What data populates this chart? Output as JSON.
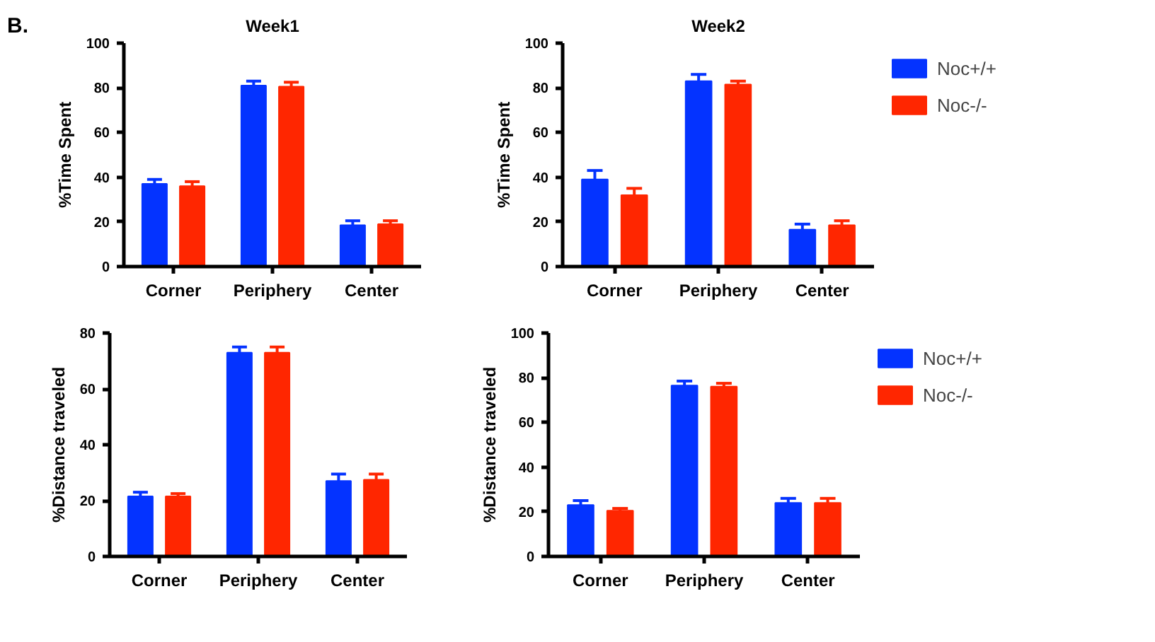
{
  "chart_data": [
    {
      "type": "bar",
      "title": "Week1",
      "ylabel": "%Time Spent",
      "annotations": [
        "B."
      ],
      "categories": [
        "Corner",
        "Periphery",
        "Center"
      ],
      "ylim": [
        0,
        100
      ],
      "yticks": [
        0,
        20,
        40,
        60,
        80,
        100
      ],
      "grid": false,
      "legend": false,
      "series": [
        {
          "color": "#0433ff",
          "values": [
            37,
            81,
            18.5
          ],
          "errors": [
            [
              37,
              39
            ],
            [
              81,
              83
            ],
            [
              18.5,
              20.5
            ]
          ]
        },
        {
          "color": "#ff2600",
          "values": [
            36,
            80.5,
            19
          ],
          "errors": [
            [
              36,
              38
            ],
            [
              80.5,
              82.5
            ],
            [
              19,
              20.5
            ]
          ]
        }
      ]
    },
    {
      "type": "bar",
      "title": "Week2",
      "ylabel": "%Time Spent",
      "categories": [
        "Corner",
        "Periphery",
        "Center"
      ],
      "ylim": [
        0,
        100
      ],
      "yticks": [
        0,
        20,
        40,
        60,
        80,
        100
      ],
      "grid": false,
      "legend": "top right",
      "series": [
        {
          "name": "Noc+/+",
          "color": "#0433ff",
          "values": [
            39,
            83,
            16.5
          ],
          "errors": [
            [
              39,
              43
            ],
            [
              83,
              86
            ],
            [
              16.5,
              19
            ]
          ]
        },
        {
          "name": "Noc-/-",
          "color": "#ff2600",
          "values": [
            32,
            81.5,
            18.5
          ],
          "errors": [
            [
              32,
              35
            ],
            [
              81.5,
              83
            ],
            [
              18.5,
              20.5
            ]
          ]
        }
      ]
    },
    {
      "type": "bar",
      "ylabel": "%Distance traveled",
      "categories": [
        "Corner",
        "Periphery",
        "Center"
      ],
      "ylim": [
        0,
        80
      ],
      "yticks": [
        0,
        20,
        40,
        60,
        80
      ],
      "grid": false,
      "legend": false,
      "series": [
        {
          "color": "#0433ff",
          "values": [
            21.5,
            73,
            27
          ],
          "errors": [
            [
              21.5,
              23
            ],
            [
              73,
              75
            ],
            [
              27,
              29.5
            ]
          ]
        },
        {
          "color": "#ff2600",
          "values": [
            21.5,
            73,
            27.5
          ],
          "errors": [
            [
              21.5,
              22.5
            ],
            [
              73,
              75
            ],
            [
              27.5,
              29.5
            ]
          ]
        }
      ]
    },
    {
      "type": "bar",
      "ylabel": "%Distance traveled",
      "categories": [
        "Corner",
        "Periphery",
        "Center"
      ],
      "ylim": [
        0,
        100
      ],
      "yticks": [
        0,
        20,
        40,
        60,
        80,
        100
      ],
      "grid": false,
      "legend": "top right",
      "series": [
        {
          "name": "Noc+/+",
          "color": "#0433ff",
          "values": [
            23,
            76.5,
            24
          ],
          "errors": [
            [
              23,
              25
            ],
            [
              76.5,
              78.5
            ],
            [
              24,
              26
            ]
          ]
        },
        {
          "name": "Noc-/-",
          "color": "#ff2600",
          "values": [
            20.5,
            76,
            24
          ],
          "errors": [
            [
              20.5,
              21.5
            ],
            [
              76,
              77.5
            ],
            [
              24,
              26
            ]
          ]
        }
      ]
    }
  ]
}
